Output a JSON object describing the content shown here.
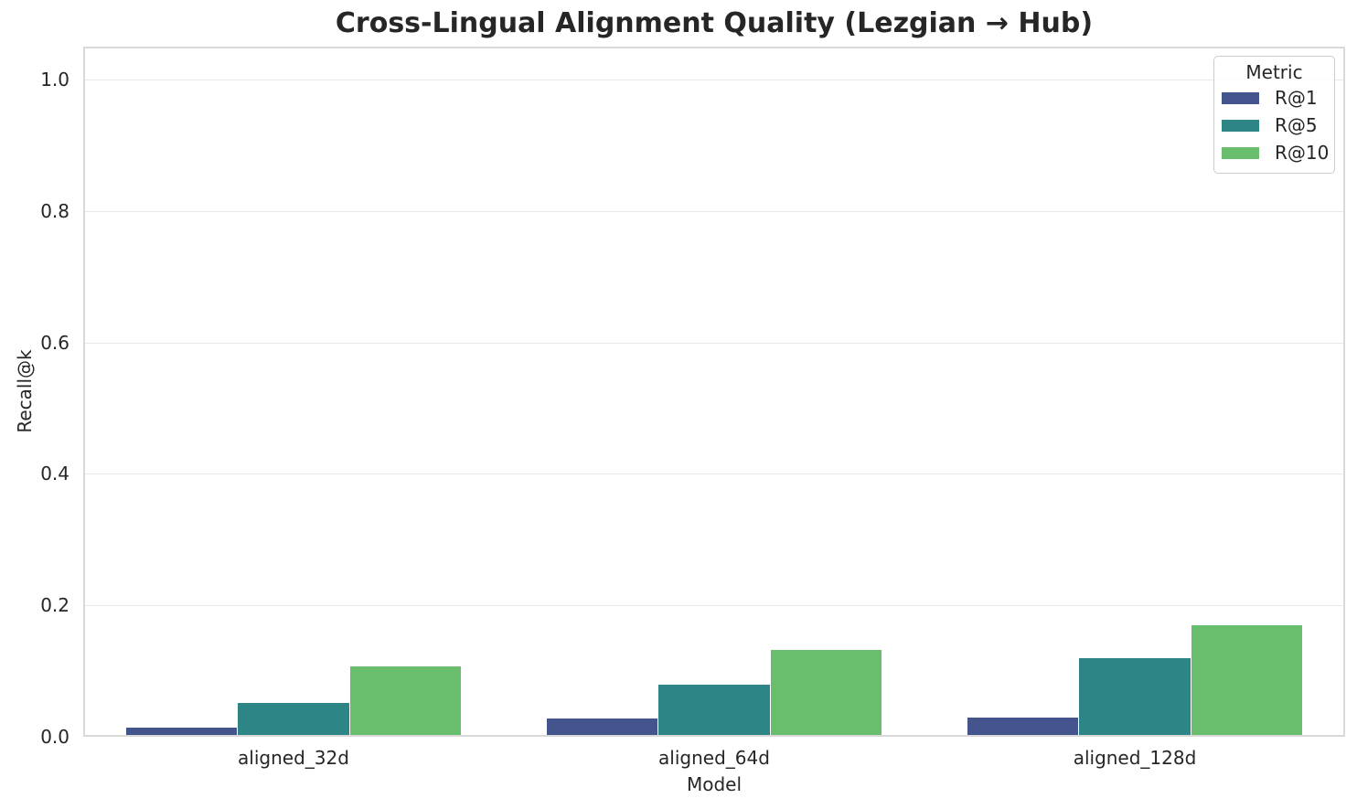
{
  "chart_data": {
    "type": "bar",
    "title": "Cross-Lingual Alignment Quality (Lezgian → Hub)",
    "xlabel": "Model",
    "ylabel": "Recall@k",
    "categories": [
      "aligned_32d",
      "aligned_64d",
      "aligned_128d"
    ],
    "series": [
      {
        "name": "R@1",
        "color": "#44548C",
        "values": [
          0.012,
          0.026,
          0.028
        ]
      },
      {
        "name": "R@5",
        "color": "#2E8585",
        "values": [
          0.05,
          0.078,
          0.118
        ]
      },
      {
        "name": "R@10",
        "color": "#69BE6D",
        "values": [
          0.106,
          0.131,
          0.168
        ]
      }
    ],
    "ylim": [
      0,
      1.05
    ],
    "yticks": [
      0.0,
      0.2,
      0.4,
      0.6,
      0.8,
      1.0
    ],
    "grid": true,
    "group_width_fraction": 0.8,
    "legend_title": "Metric",
    "legend_position": "upper right"
  },
  "style": {
    "background": "#ffffff",
    "text_color": "#262626",
    "grid_color": "#e9e9e9",
    "spine_color": "#d9d9d9"
  }
}
